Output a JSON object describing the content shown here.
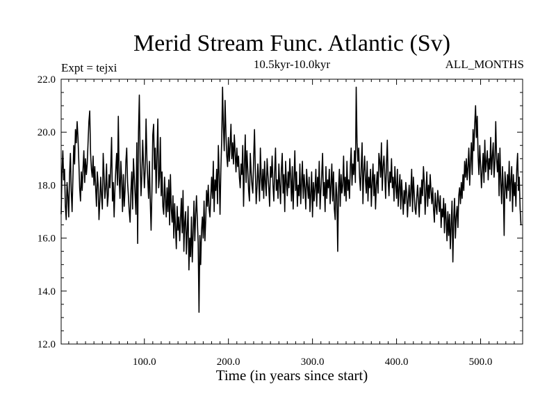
{
  "chart_data": {
    "type": "line",
    "title": "Merid Stream Func. Atlantic (Sv)",
    "subtitle": "10.5kyr-10.0kyr",
    "left_label": "Expt = tejxi",
    "right_label": "ALL_MONTHS",
    "xlabel": "Time (in years since start)",
    "ylabel": "",
    "xlim": [
      1,
      550
    ],
    "ylim": [
      12.0,
      22.0
    ],
    "x_ticks": [
      100.0,
      200.0,
      300.0,
      400.0,
      500.0
    ],
    "x_tick_labels": [
      "100.0",
      "200.0",
      "300.0",
      "400.0",
      "500.0"
    ],
    "y_ticks": [
      12.0,
      14.0,
      16.0,
      18.0,
      20.0,
      22.0
    ],
    "y_tick_labels": [
      "12.0",
      "14.0",
      "16.0",
      "18.0",
      "20.0",
      "22.0"
    ],
    "line_color": "#000000",
    "grid": false,
    "series": [
      {
        "x_start": 1,
        "x_step": 1,
        "values": [
          16.9,
          18.5,
          19.3,
          18.2,
          18.6,
          17.2,
          16.7,
          18.1,
          17.6,
          16.8,
          18.4,
          19.2,
          17.8,
          17.0,
          18.3,
          19.5,
          18.8,
          20.1,
          19.6,
          20.4,
          19.8,
          18.9,
          17.9,
          17.4,
          18.5,
          17.8,
          18.6,
          19.3,
          18.1,
          19.0,
          18.4,
          18.8,
          19.6,
          20.4,
          20.8,
          19.2,
          18.6,
          18.3,
          19.1,
          18.0,
          18.7,
          17.9,
          17.2,
          18.5,
          18.0,
          16.7,
          17.4,
          18.3,
          17.6,
          17.1,
          19.2,
          18.4,
          17.5,
          17.9,
          18.8,
          17.2,
          17.6,
          18.4,
          17.9,
          18.7,
          19.8,
          17.4,
          18.1,
          16.8,
          17.9,
          18.6,
          19.2,
          18.0,
          20.6,
          18.3,
          17.5,
          18.9,
          18.2,
          17.0,
          18.4,
          17.2,
          17.8,
          18.9,
          19.4,
          18.1,
          17.6,
          17.0,
          16.6,
          17.8,
          18.5,
          17.1,
          19.0,
          18.3,
          17.6,
          16.9,
          19.6,
          15.8,
          20.0,
          21.4,
          18.9,
          17.6,
          18.4,
          19.7,
          18.8,
          17.9,
          18.6,
          20.5,
          19.0,
          18.2,
          17.5,
          18.9,
          17.4,
          16.3,
          17.8,
          19.9,
          20.3,
          18.6,
          19.4,
          17.7,
          19.1,
          20.5,
          17.9,
          18.3,
          19.8,
          17.6,
          18.5,
          17.2,
          16.9,
          18.3,
          17.5,
          16.8,
          17.9,
          17.0,
          18.2,
          16.5,
          18.4,
          17.1,
          16.6,
          17.6,
          16.0,
          17.3,
          16.4,
          15.6,
          17.2,
          16.3,
          16.8,
          15.9,
          16.7,
          17.5,
          16.2,
          17.8,
          15.5,
          16.6,
          17.0,
          15.4,
          16.3,
          17.2,
          14.8,
          16.0,
          15.3,
          16.8,
          15.1,
          16.2,
          17.4,
          15.9,
          16.9,
          17.6,
          16.7,
          15.8,
          13.2,
          16.1,
          15.0,
          16.3,
          16.8,
          16.0,
          17.4,
          15.9,
          16.7,
          17.8,
          17.2,
          18.0,
          17.1,
          16.8,
          17.6,
          18.3,
          17.5,
          18.9,
          17.0,
          18.2,
          17.8,
          18.6,
          17.3,
          19.5,
          18.4,
          16.9,
          18.6,
          19.7,
          21.7,
          20.2,
          19.3,
          21.2,
          20.0,
          19.1,
          18.7,
          19.8,
          18.9,
          19.5,
          20.3,
          19.0,
          19.6,
          18.8,
          19.9,
          19.2,
          18.5,
          19.4,
          18.7,
          19.1,
          18.3,
          17.9,
          18.8,
          18.4,
          19.5,
          17.2,
          18.7,
          19.9,
          18.1,
          19.3,
          18.6,
          17.8,
          17.4,
          19.2,
          18.5,
          18.0,
          17.7,
          19.0,
          20.1,
          18.6,
          17.3,
          17.9,
          18.8,
          18.2,
          17.4,
          19.4,
          18.3,
          17.8,
          18.6,
          17.5,
          18.9,
          18.1,
          17.6,
          19.0,
          18.4,
          17.9,
          17.2,
          18.7,
          18.3,
          19.1,
          18.0,
          17.4,
          18.5,
          19.4,
          17.8,
          18.2,
          17.5,
          18.8,
          18.0,
          17.3,
          18.6,
          19.2,
          17.7,
          18.4,
          17.0,
          18.9,
          18.1,
          17.6,
          18.5,
          17.9,
          19.0,
          18.3,
          17.4,
          18.7,
          17.1,
          18.2,
          19.3,
          17.8,
          18.5,
          17.2,
          18.0,
          17.6,
          18.8,
          17.3,
          18.1,
          18.9,
          17.5,
          18.4,
          17.9,
          17.1,
          18.6,
          18.0,
          17.5,
          18.3,
          17.0,
          17.7,
          18.5,
          16.8,
          18.1,
          17.4,
          17.9,
          18.6,
          17.2,
          18.3,
          17.7,
          18.9,
          17.1,
          17.8,
          18.4,
          19.2,
          17.6,
          18.1,
          17.0,
          18.7,
          17.5,
          18.2,
          17.9,
          18.6,
          17.3,
          18.0,
          18.8,
          17.4,
          18.5,
          17.1,
          16.7,
          18.1,
          17.6,
          15.5,
          17.9,
          18.6,
          17.2,
          18.4,
          17.7,
          18.0,
          19.1,
          17.6,
          18.3,
          17.4,
          18.9,
          17.8,
          18.2,
          17.5,
          18.7,
          19.4,
          18.0,
          18.8,
          18.4,
          19.3,
          18.1,
          21.7,
          19.6,
          18.9,
          19.4,
          18.3,
          17.8,
          18.7,
          19.6,
          17.3,
          18.5,
          19.1,
          18.2,
          17.7,
          18.9,
          17.4,
          18.3,
          17.9,
          18.6,
          17.2,
          18.1,
          18.8,
          17.6,
          18.4,
          17.1,
          18.0,
          18.5,
          17.7,
          19.2,
          18.9,
          18.3,
          19.6,
          17.8,
          18.7,
          19.1,
          18.4,
          17.5,
          18.8,
          19.7,
          18.2,
          17.6,
          18.5,
          18.1,
          19.0,
          17.9,
          18.3,
          17.4,
          18.7,
          18.0,
          17.5,
          18.6,
          17.2,
          17.9,
          18.4,
          17.1,
          18.2,
          17.6,
          16.9,
          17.8,
          17.3,
          18.1,
          17.7,
          16.8,
          17.5,
          18.0,
          17.2,
          17.8,
          18.6,
          17.0,
          18.3,
          17.7,
          17.1,
          16.9,
          17.5,
          18.0,
          17.4,
          16.8,
          17.9,
          17.3,
          18.2,
          17.6,
          18.7,
          18.1,
          16.9,
          17.7,
          18.5,
          17.2,
          18.0,
          17.5,
          18.4,
          17.8,
          17.3,
          17.9,
          17.1,
          16.6,
          17.7,
          17.2,
          16.9,
          17.8,
          17.4,
          17.0,
          17.6,
          16.4,
          17.1,
          16.8,
          17.5,
          16.2,
          17.3,
          16.7,
          15.9,
          17.0,
          16.1,
          16.9,
          15.6,
          16.5,
          17.4,
          15.1,
          16.7,
          17.5,
          16.0,
          16.8,
          17.2,
          16.4,
          17.6,
          17.9,
          17.3,
          18.1,
          17.5,
          18.4,
          17.8,
          18.9,
          18.3,
          19.0,
          18.2,
          18.7,
          19.4,
          18.0,
          18.9,
          19.6,
          18.4,
          20.1,
          19.3,
          20.3,
          21.0,
          19.8,
          20.6,
          19.1,
          18.4,
          19.5,
          18.7,
          17.9,
          18.6,
          19.2,
          18.1,
          19.7,
          18.5,
          18.9,
          19.3,
          18.2,
          19.0,
          18.6,
          19.8,
          18.4,
          19.1,
          19.6,
          18.3,
          18.9,
          20.4,
          19.0,
          18.5,
          19.2,
          17.6,
          19.4,
          18.1,
          17.3,
          18.7,
          17.9,
          16.1,
          18.5,
          18.0,
          17.5,
          18.4,
          17.8,
          18.9,
          17.4,
          18.2,
          18.7,
          17.0,
          18.4,
          17.6,
          18.1,
          17.2,
          18.6,
          19.2,
          17.8,
          18.3,
          17.1,
          16.5
        ]
      }
    ]
  }
}
